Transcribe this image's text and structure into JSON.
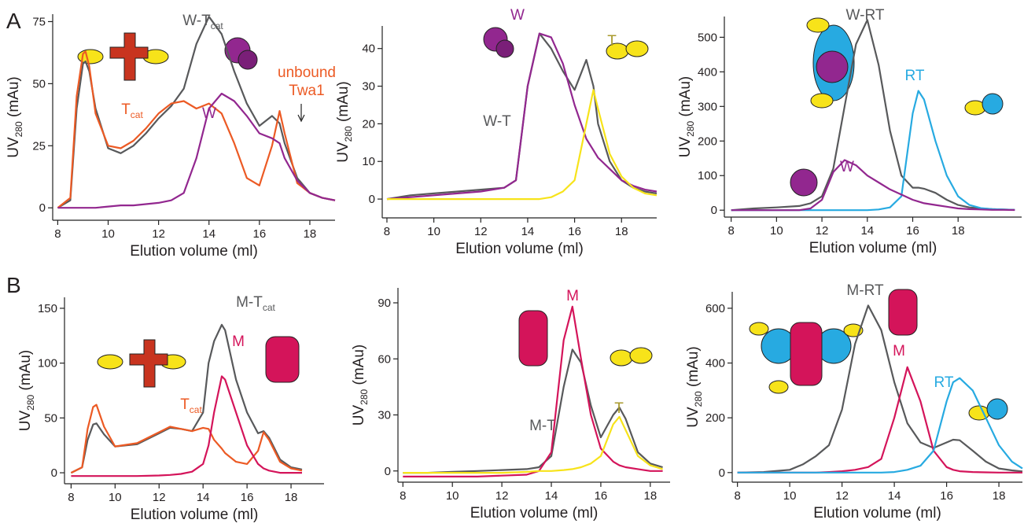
{
  "panels": [
    "A",
    "B"
  ],
  "chart_data": [
    {
      "type": "line",
      "xlabel": "Elution volume (ml)",
      "ylabel": {
        "text": "UV",
        "sub": "280",
        "unit": "(mAu)"
      },
      "xlim": [
        7.8,
        19
      ],
      "ylim": [
        -5,
        78
      ],
      "xticks": [
        8,
        10,
        12,
        14,
        16,
        18
      ],
      "yticks": [
        0,
        25,
        50,
        75
      ],
      "x": [
        8,
        8.5,
        8.75,
        9,
        9.1,
        9.25,
        9.5,
        10,
        10.5,
        11,
        11.5,
        12,
        12.5,
        13,
        13.5,
        14,
        14.5,
        15,
        15.5,
        16,
        16.5,
        16.8,
        17,
        17.5,
        18,
        18.5,
        19
      ],
      "series": [
        {
          "name": "W-T",
          "name_sub": "cat",
          "color": "#58595b",
          "values": [
            0,
            3,
            40,
            58,
            59,
            55,
            40,
            24,
            22,
            25,
            30,
            36,
            41,
            48,
            66,
            77,
            70,
            55,
            42,
            33,
            37,
            34,
            26,
            12,
            6,
            4,
            3
          ]
        },
        {
          "name": "T",
          "name_sub": "cat",
          "color": "#ec5a24",
          "values": [
            0,
            4,
            45,
            62,
            63,
            57,
            38,
            25,
            24,
            27,
            32,
            38,
            42,
            43,
            40,
            42,
            38,
            26,
            12,
            9,
            25,
            39,
            30,
            10,
            6,
            4,
            3
          ]
        },
        {
          "name": "W",
          "color": "#92278f",
          "values": [
            0,
            0,
            0,
            0,
            0,
            0,
            0,
            0.5,
            1,
            1,
            1.5,
            2,
            3,
            6,
            20,
            40,
            46,
            43,
            37,
            30,
            28,
            26,
            20,
            11,
            6,
            4,
            3
          ]
        }
      ],
      "annotation": {
        "lines": [
          "unbound",
          "Twa1"
        ],
        "color": "#ec5a24"
      }
    },
    {
      "type": "line",
      "xlabel": "Elution volume (ml)",
      "ylabel": {
        "text": "UV",
        "sub": "280",
        "unit": "(mAu)"
      },
      "xlim": [
        7.8,
        19.5
      ],
      "ylim": [
        -5,
        46
      ],
      "xticks": [
        8,
        10,
        12,
        14,
        16,
        18
      ],
      "yticks": [
        0,
        10,
        20,
        30,
        40
      ],
      "x": [
        8,
        9,
        10,
        11,
        12,
        13,
        13.5,
        14,
        14.5,
        15,
        15.5,
        16,
        16.5,
        16.8,
        17,
        17.5,
        18,
        18.5,
        19,
        19.5
      ],
      "series": [
        {
          "name": "W-T",
          "color": "#58595b",
          "values": [
            0,
            1,
            1.5,
            2,
            2.5,
            3,
            5,
            30,
            44,
            40,
            34,
            29,
            37,
            30,
            20,
            10,
            5,
            3,
            2,
            1.5
          ]
        },
        {
          "name": "W",
          "color": "#92278f",
          "values": [
            0,
            0.5,
            1,
            1.5,
            2,
            3,
            5,
            30,
            44,
            43,
            36,
            25,
            16,
            13,
            11,
            8,
            5,
            3.5,
            2.5,
            2
          ]
        },
        {
          "name": "T",
          "color": "#f7e31a",
          "label_color": "#a89a2c",
          "values": [
            0,
            0,
            0,
            0,
            0,
            0,
            0,
            0,
            0,
            0.5,
            2,
            5,
            20,
            29,
            24,
            12,
            6,
            3,
            1.5,
            1
          ]
        }
      ]
    },
    {
      "type": "line",
      "xlabel": "Elution volume (ml)",
      "ylabel": {
        "text": "UV",
        "sub": "280",
        "unit": "(mAu)"
      },
      "xlim": [
        7.7,
        20.8
      ],
      "ylim": [
        -20,
        560
      ],
      "xticks": [
        8,
        10,
        12,
        14,
        16,
        18
      ],
      "yticks": [
        0,
        100,
        200,
        300,
        400,
        500
      ],
      "x": [
        8,
        9,
        10,
        11,
        11.5,
        12,
        12.5,
        13,
        13.5,
        14,
        14.5,
        15,
        15.5,
        16,
        16.25,
        16.5,
        17,
        17.5,
        18,
        18.5,
        19,
        19.5,
        20,
        20.5
      ],
      "series": [
        {
          "name": "W-RT",
          "color": "#58595b",
          "values": [
            0,
            5,
            8,
            12,
            20,
            40,
            120,
            300,
            480,
            550,
            420,
            230,
            100,
            65,
            65,
            62,
            50,
            30,
            15,
            8,
            5,
            3,
            2,
            1
          ]
        },
        {
          "name": "RT",
          "color": "#27aae1",
          "values": [
            0,
            0,
            0,
            0,
            0,
            0,
            0,
            0,
            0,
            0,
            2,
            8,
            40,
            280,
            345,
            320,
            200,
            100,
            40,
            15,
            6,
            3,
            2,
            1
          ]
        },
        {
          "name": "W",
          "color": "#92278f",
          "values": [
            0,
            0,
            0,
            0,
            5,
            30,
            110,
            145,
            130,
            100,
            80,
            60,
            45,
            30,
            25,
            20,
            15,
            10,
            5,
            3,
            2,
            1,
            1,
            0.5
          ]
        }
      ]
    },
    {
      "type": "line",
      "xlabel": "Elution volume (ml)",
      "ylabel": {
        "text": "UV",
        "sub": "280",
        "unit": "(mAu)"
      },
      "xlim": [
        7.7,
        19.5
      ],
      "ylim": [
        -10,
        160
      ],
      "xticks": [
        8,
        10,
        12,
        14,
        16,
        18
      ],
      "yticks": [
        0,
        50,
        100,
        150
      ],
      "x": [
        8,
        8.5,
        8.75,
        9,
        9.15,
        9.5,
        10,
        11,
        12,
        12.5,
        13,
        13.5,
        14,
        14.25,
        14.5,
        14.85,
        15,
        15.5,
        16,
        16.5,
        16.75,
        17,
        17.5,
        18,
        18.5
      ],
      "series": [
        {
          "name": "M-T",
          "name_sub": "cat",
          "color": "#58595b",
          "values": [
            0,
            5,
            30,
            44,
            45,
            35,
            24,
            26,
            36,
            41,
            40,
            38,
            55,
            100,
            120,
            135,
            130,
            85,
            55,
            36,
            38,
            32,
            12,
            5,
            3
          ]
        },
        {
          "name": "T",
          "name_sub": "cat",
          "color": "#ec5a24",
          "values": [
            0,
            5,
            40,
            60,
            62,
            42,
            24,
            27,
            37,
            42,
            40,
            38,
            41,
            40,
            30,
            22,
            18,
            10,
            8,
            20,
            37,
            30,
            10,
            4,
            2
          ]
        },
        {
          "name": "M",
          "color": "#d4145a",
          "values": [
            -3,
            -3,
            -3,
            -3,
            -3,
            -3,
            -3,
            -3,
            -2.5,
            -2,
            -1,
            1,
            8,
            25,
            55,
            88,
            85,
            55,
            25,
            8,
            4,
            2,
            0,
            0,
            0
          ]
        }
      ]
    },
    {
      "type": "line",
      "xlabel": "Elution volume (ml)",
      "ylabel": {
        "text": "UV",
        "sub": "280",
        "unit": "(mAu)"
      },
      "xlim": [
        7.8,
        18.8
      ],
      "ylim": [
        -6,
        98
      ],
      "xticks": [
        8,
        10,
        12,
        14,
        16,
        18
      ],
      "yticks": [
        0,
        30,
        60,
        90
      ],
      "x": [
        8,
        9,
        10,
        11,
        12,
        13,
        13.5,
        14,
        14.5,
        14.85,
        15.2,
        15.6,
        16,
        16.5,
        16.75,
        17,
        17.5,
        18,
        18.5
      ],
      "series": [
        {
          "name": "M-T",
          "color": "#58595b",
          "values": [
            -1,
            -1,
            -0.5,
            0,
            0.5,
            1,
            2,
            8,
            45,
            65,
            58,
            35,
            18,
            30,
            34,
            28,
            10,
            4,
            2
          ]
        },
        {
          "name": "M",
          "color": "#d4145a",
          "values": [
            -3,
            -3,
            -3,
            -3,
            -2.5,
            -2,
            0,
            10,
            70,
            88,
            60,
            30,
            12,
            5,
            3,
            2,
            1,
            0,
            0
          ]
        },
        {
          "name": "T",
          "color": "#f7e31a",
          "label_color": "#a89a2c",
          "values": [
            -1,
            -1,
            -1,
            -1,
            -1,
            -0.5,
            0,
            0,
            0.5,
            1,
            2,
            4,
            8,
            25,
            29,
            22,
            8,
            3,
            1
          ]
        }
      ]
    },
    {
      "type": "line",
      "xlabel": "Elution volume (ml)",
      "ylabel": {
        "text": "UV",
        "sub": "280",
        "unit": "(mAu)"
      },
      "xlim": [
        7.8,
        18.9
      ],
      "ylim": [
        -35,
        660
      ],
      "xticks": [
        8,
        10,
        12,
        14,
        16,
        18
      ],
      "yticks": [
        0,
        200,
        400,
        600
      ],
      "x": [
        8,
        9,
        10,
        10.5,
        11,
        11.5,
        12,
        12.5,
        13,
        13.5,
        14,
        14.5,
        15,
        15.5,
        16,
        16.25,
        16.5,
        17,
        17.5,
        18,
        18.5,
        18.9
      ],
      "series": [
        {
          "name": "M-RT",
          "color": "#58595b",
          "values": [
            0,
            2,
            10,
            30,
            60,
            100,
            230,
            470,
            610,
            520,
            330,
            180,
            110,
            90,
            110,
            120,
            118,
            80,
            40,
            15,
            8,
            4
          ]
        },
        {
          "name": "M",
          "color": "#d4145a",
          "values": [
            0,
            0,
            0,
            0,
            0,
            2,
            5,
            10,
            20,
            50,
            200,
            385,
            260,
            80,
            20,
            10,
            5,
            2,
            1,
            0,
            0,
            0
          ]
        },
        {
          "name": "RT",
          "color": "#27aae1",
          "values": [
            0,
            0,
            0,
            0,
            0,
            0,
            0,
            0,
            0,
            0,
            2,
            10,
            25,
            80,
            260,
            330,
            345,
            300,
            200,
            100,
            40,
            15
          ]
        }
      ]
    }
  ]
}
